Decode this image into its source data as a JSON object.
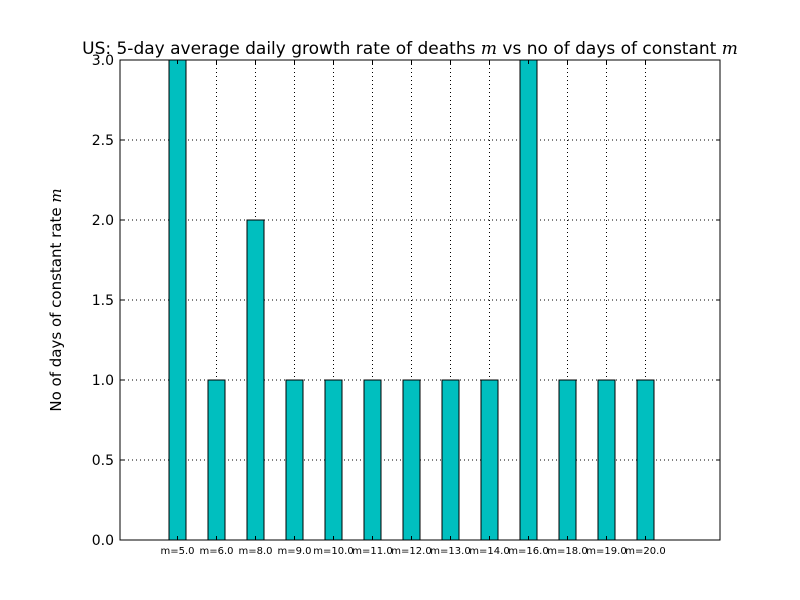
{
  "chart_data": {
    "type": "bar",
    "title_text": "US: 5-day average daily growth rate of deaths ",
    "title_math": "m",
    "title_text2": " vs no of days of constant ",
    "title_math2": "m",
    "ylabel_text": "No of days of constant rate ",
    "ylabel_math": "m",
    "xlabel": "",
    "categories": [
      "m=5.0",
      "m=6.0",
      "m=8.0",
      "m=9.0",
      "m=10.0",
      "m=11.0",
      "m=12.0",
      "m=13.0",
      "m=14.0",
      "m=16.0",
      "m=18.0",
      "m=19.0",
      "m=20.0"
    ],
    "values": [
      3,
      1,
      2,
      1,
      1,
      1,
      1,
      1,
      1,
      3,
      1,
      1,
      1
    ],
    "ylim": [
      0,
      3
    ],
    "yticks": [
      "0.0",
      "0.5",
      "1.0",
      "1.5",
      "2.0",
      "2.5",
      "3.0"
    ],
    "grid": true,
    "bar_color": "#00BFBF",
    "edge_color": "#000000"
  }
}
